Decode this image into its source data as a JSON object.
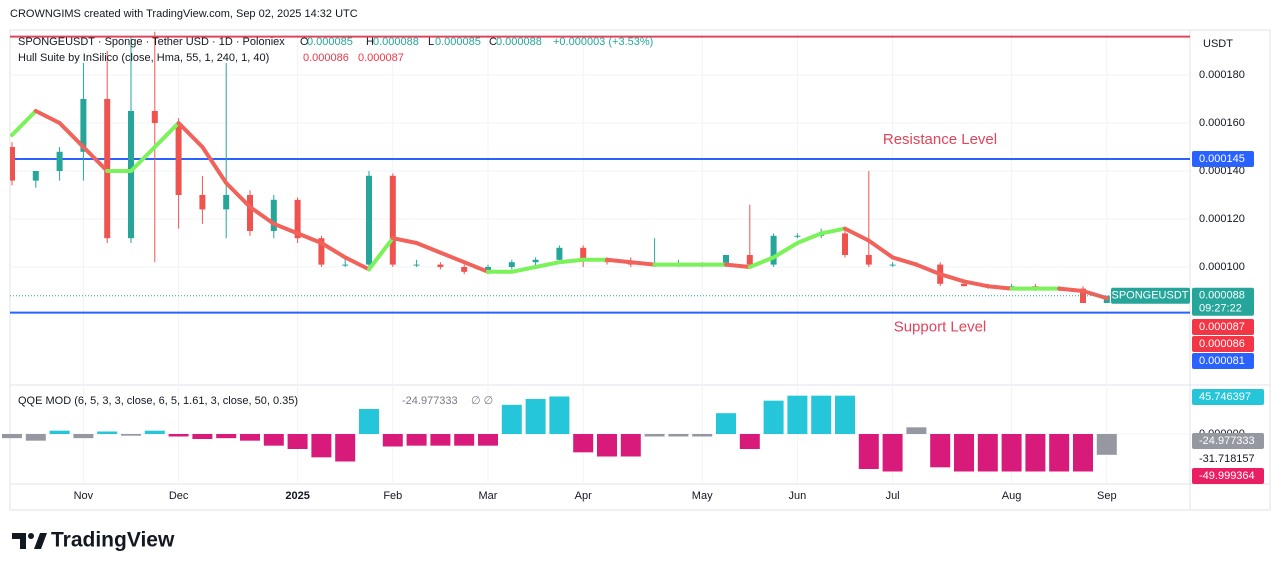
{
  "chart_data": {
    "type": "candlestick",
    "credit": "CROWNGIMS created with TradingView.com, Sep 02, 2025 14:32 UTC",
    "symbol_line": "SPONGEUSDT · Sponge · Tether USD · 1D · Poloniex",
    "ohlc_letters": [
      "O",
      "H",
      "L",
      "C"
    ],
    "change": "+0.000003 (+3.53%)",
    "currency": "USDT",
    "symbol": "SPONGEUSDT",
    "countdown": "09:27:22",
    "up_color": "#26a69a",
    "down_color": "#ef5350",
    "categories": [
      null,
      null,
      null,
      "Nov",
      null,
      null,
      null,
      "Dec",
      null,
      null,
      null,
      null,
      "2025",
      null,
      null,
      null,
      "Feb",
      null,
      null,
      null,
      "Mar",
      null,
      null,
      null,
      "Apr",
      null,
      null,
      null,
      null,
      "May",
      null,
      null,
      null,
      "Jun",
      null,
      null,
      null,
      "Jul",
      null,
      null,
      null,
      null,
      "Aug",
      null,
      null,
      null,
      "Sep"
    ],
    "open": [
      0.00015,
      0.000136,
      0.00014,
      0.000148,
      0.00017,
      0.000112,
      0.000165,
      0.00016,
      0.00013,
      0.000124,
      0.00013,
      0.000115,
      0.000128,
      0.000112,
      0.000101,
      0.000101,
      0.000138,
      0.000101,
      0.000101,
      0.0001,
      9.8e-05,
      0.0001,
      0.000102,
      0.000103,
      0.000108,
      0.000103,
      0.000102,
      0.000101,
      0.000101,
      0.000101,
      0.000101,
      0.000105,
      0.000101,
      0.000113,
      0.000113,
      0.000114,
      0.000105,
      0.000101,
      0.000101,
      0.000101,
      9.3e-05,
      9.2e-05,
      9.2e-05,
      9.2e-05,
      9.1e-05,
      9.1e-05,
      8.5e-05
    ],
    "high": [
      0.000152,
      0.00014,
      0.00015,
      0.000185,
      0.00019,
      0.000196,
      0.000198,
      0.000162,
      0.000138,
      0.000185,
      0.000132,
      0.00013,
      0.000129,
      0.000113,
      0.000104,
      0.00014,
      0.000139,
      0.000103,
      0.000102,
      0.000101,
      0.000101,
      0.000103,
      0.000104,
      0.000109,
      0.000109,
      0.000104,
      0.000104,
      0.000112,
      0.000103,
      0.000102,
      0.000105,
      0.000126,
      0.000114,
      0.000114,
      0.000116,
      0.000115,
      0.00014,
      0.000102,
      0.000102,
      0.000102,
      9.3e-05,
      9.3e-05,
      9.3e-05,
      9.3e-05,
      9.2e-05,
      9.2e-05,
      8.8e-05
    ],
    "low": [
      0.000134,
      0.000133,
      0.000136,
      0.000136,
      0.00011,
      0.00011,
      0.000102,
      0.000116,
      0.000118,
      0.000112,
      0.000113,
      0.000112,
      0.00011,
      0.0001,
      0.0001,
      9.9e-05,
      0.0001,
      0.0001,
      9.9e-05,
      9.7e-05,
      9.7e-05,
      9.9e-05,
      0.0001,
      0.000102,
      0.0001,
      0.000101,
      0.0001,
      0.0001,
      0.0001,
      0.0001,
      0.0001,
      0.0001,
      0.0001,
      0.000112,
      0.000112,
      0.000104,
      0.0001,
      0.0001,
      0.0001,
      9.2e-05,
      9.2e-05,
      9.1e-05,
      9.1e-05,
      9e-05,
      9e-05,
      8.5e-05,
      8.5e-05
    ],
    "close": [
      0.000136,
      0.00014,
      0.000148,
      0.00017,
      0.000112,
      0.000165,
      0.00016,
      0.00013,
      0.000124,
      0.00013,
      0.000115,
      0.000128,
      0.000112,
      0.000101,
      0.000101,
      0.000138,
      0.000101,
      0.000101,
      0.0001,
      9.8e-05,
      0.0001,
      0.000102,
      0.000103,
      0.000108,
      0.000103,
      0.000102,
      0.000101,
      0.000101,
      0.000101,
      0.000101,
      0.000105,
      0.000101,
      0.000113,
      0.000113,
      0.000114,
      0.000105,
      0.000101,
      0.000101,
      0.000101,
      9.3e-05,
      9.2e-05,
      9.2e-05,
      9.2e-05,
      9.1e-05,
      9.1e-05,
      8.5e-05,
      8.8e-05
    ],
    "ylim": [
      5e-05,
      0.0002
    ],
    "yticks": [
      {
        "value": 0.0001,
        "label": "0.000100"
      },
      {
        "value": 0.00012,
        "label": "0.000120"
      },
      {
        "value": 0.00014,
        "label": "0.000140"
      },
      {
        "value": 0.00016,
        "label": "0.000160"
      },
      {
        "value": 0.00018,
        "label": "0.000180"
      }
    ],
    "grid": true,
    "hull": {
      "name": "Hull Suite by InSilico (close, Hma, 55, 1, 240, 1, 40)",
      "up_color": "#7cf25a",
      "down_color": "#f0625a",
      "legend_values": [
        8.6e-05,
        8.7e-05
      ],
      "values": [
        0.000155,
        0.000165,
        0.00016,
        0.00015,
        0.00014,
        0.00014,
        0.00015,
        0.00016,
        0.00015,
        0.000135,
        0.000125,
        0.000118,
        0.000114,
        0.00011,
        0.000104,
        9.9e-05,
        0.000112,
        0.00011,
        0.000106,
        0.000102,
        9.8e-05,
        9.8e-05,
        0.0001,
        0.000102,
        0.000103,
        0.000103,
        0.000102,
        0.000101,
        0.000101,
        0.000101,
        0.000101,
        0.0001,
        0.000104,
        0.00011,
        0.000114,
        0.000116,
        0.000111,
        0.000104,
        0.000101,
        9.7e-05,
        9.4e-05,
        9.2e-05,
        9.1e-05,
        9.1e-05,
        9.1e-05,
        9e-05,
        8.7e-05
      ]
    },
    "levels": [
      {
        "name": "Resistance Level",
        "value": 0.000145,
        "color": "#2962ff",
        "text_color": "#e0455b"
      },
      {
        "name": "Support Level",
        "value": 8.1e-05,
        "color": "#2962ff",
        "text_color": "#e0455b"
      }
    ],
    "top_line": {
      "value": 0.000196,
      "color": "#e0455b"
    },
    "qqe": {
      "name": "QQE MOD (6, 5, 3, 3, close, 6, 5, 1.61, 3, close, 50, 0.35)",
      "symbols": "∅  ∅",
      "ylim": [
        -60,
        60
      ],
      "yticks": [
        {
          "value": 0,
          "label": "0.000000"
        }
      ],
      "levels": [
        45.746397,
        -31.718157,
        -49.999364
      ],
      "level_colors": [
        "#26c6da",
        null,
        "#e91e63"
      ],
      "values": [
        -5,
        -8,
        4,
        -5,
        3,
        -2,
        4,
        -3,
        -6,
        -5,
        -8,
        -14,
        -18,
        -28,
        -33,
        30,
        -15,
        -14,
        -14,
        -14,
        -14,
        35,
        42,
        45,
        -22,
        -27,
        -27,
        -3,
        -3,
        -3,
        25,
        -18,
        40,
        46,
        46,
        46,
        -42,
        -45,
        8,
        -40,
        -45,
        -45,
        -45,
        -45,
        -45,
        -45,
        -24.977333
      ],
      "colors": [
        "#9598a1",
        "#9598a1",
        "#26c6da",
        "#9598a1",
        "#26c6da",
        "#9598a1",
        "#26c6da",
        "#d81b7a",
        "#d81b7a",
        "#d81b7a",
        "#d81b7a",
        "#d81b7a",
        "#d81b7a",
        "#d81b7a",
        "#d81b7a",
        "#26c6da",
        "#d81b7a",
        "#d81b7a",
        "#d81b7a",
        "#d81b7a",
        "#d81b7a",
        "#26c6da",
        "#26c6da",
        "#26c6da",
        "#d81b7a",
        "#d81b7a",
        "#d81b7a",
        "#9598a1",
        "#9598a1",
        "#9598a1",
        "#26c6da",
        "#d81b7a",
        "#26c6da",
        "#26c6da",
        "#26c6da",
        "#26c6da",
        "#d81b7a",
        "#d81b7a",
        "#9598a1",
        "#d81b7a",
        "#d81b7a",
        "#d81b7a",
        "#d81b7a",
        "#d81b7a",
        "#d81b7a",
        "#d81b7a",
        "#9598a1"
      ]
    },
    "brand": "TradingView"
  }
}
